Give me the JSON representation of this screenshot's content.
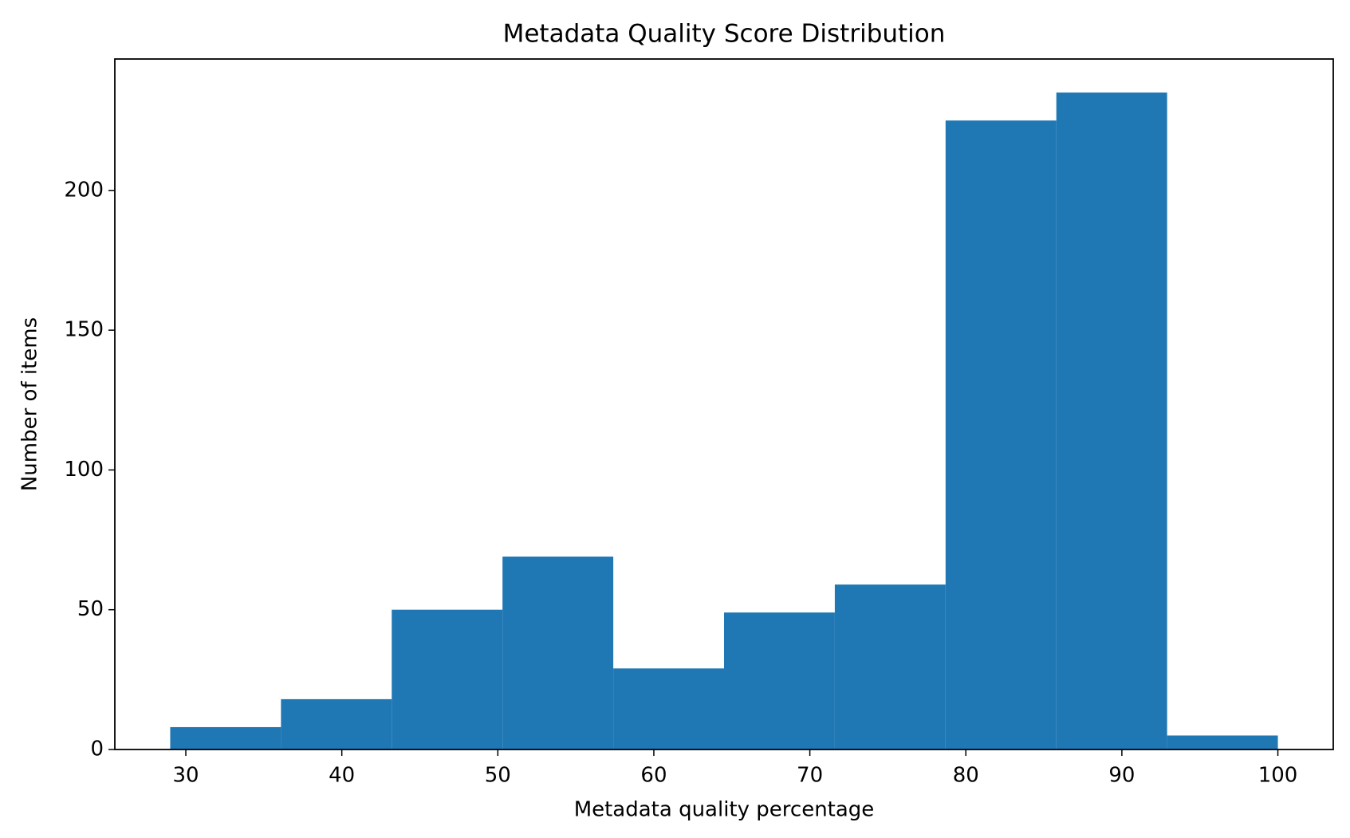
{
  "chart_data": {
    "type": "histogram",
    "title": "Metadata Quality Score Distribution",
    "x_label": "Metadata quality percentage",
    "y_label": "Number of items",
    "bins": [
      29,
      36.1,
      43.2,
      50.3,
      57.4,
      64.5,
      71.6,
      78.7,
      85.8,
      92.9,
      100
    ],
    "values": [
      8,
      18,
      50,
      69,
      29,
      49,
      59,
      225,
      235,
      5
    ],
    "color": "#1f77b4",
    "xlim": [
      25.45,
      103.55
    ],
    "xticks": [
      30,
      40,
      50,
      60,
      70,
      80,
      90,
      100
    ],
    "ylim": [
      0,
      247
    ],
    "yticks": [
      0,
      50,
      100,
      150,
      200
    ]
  }
}
